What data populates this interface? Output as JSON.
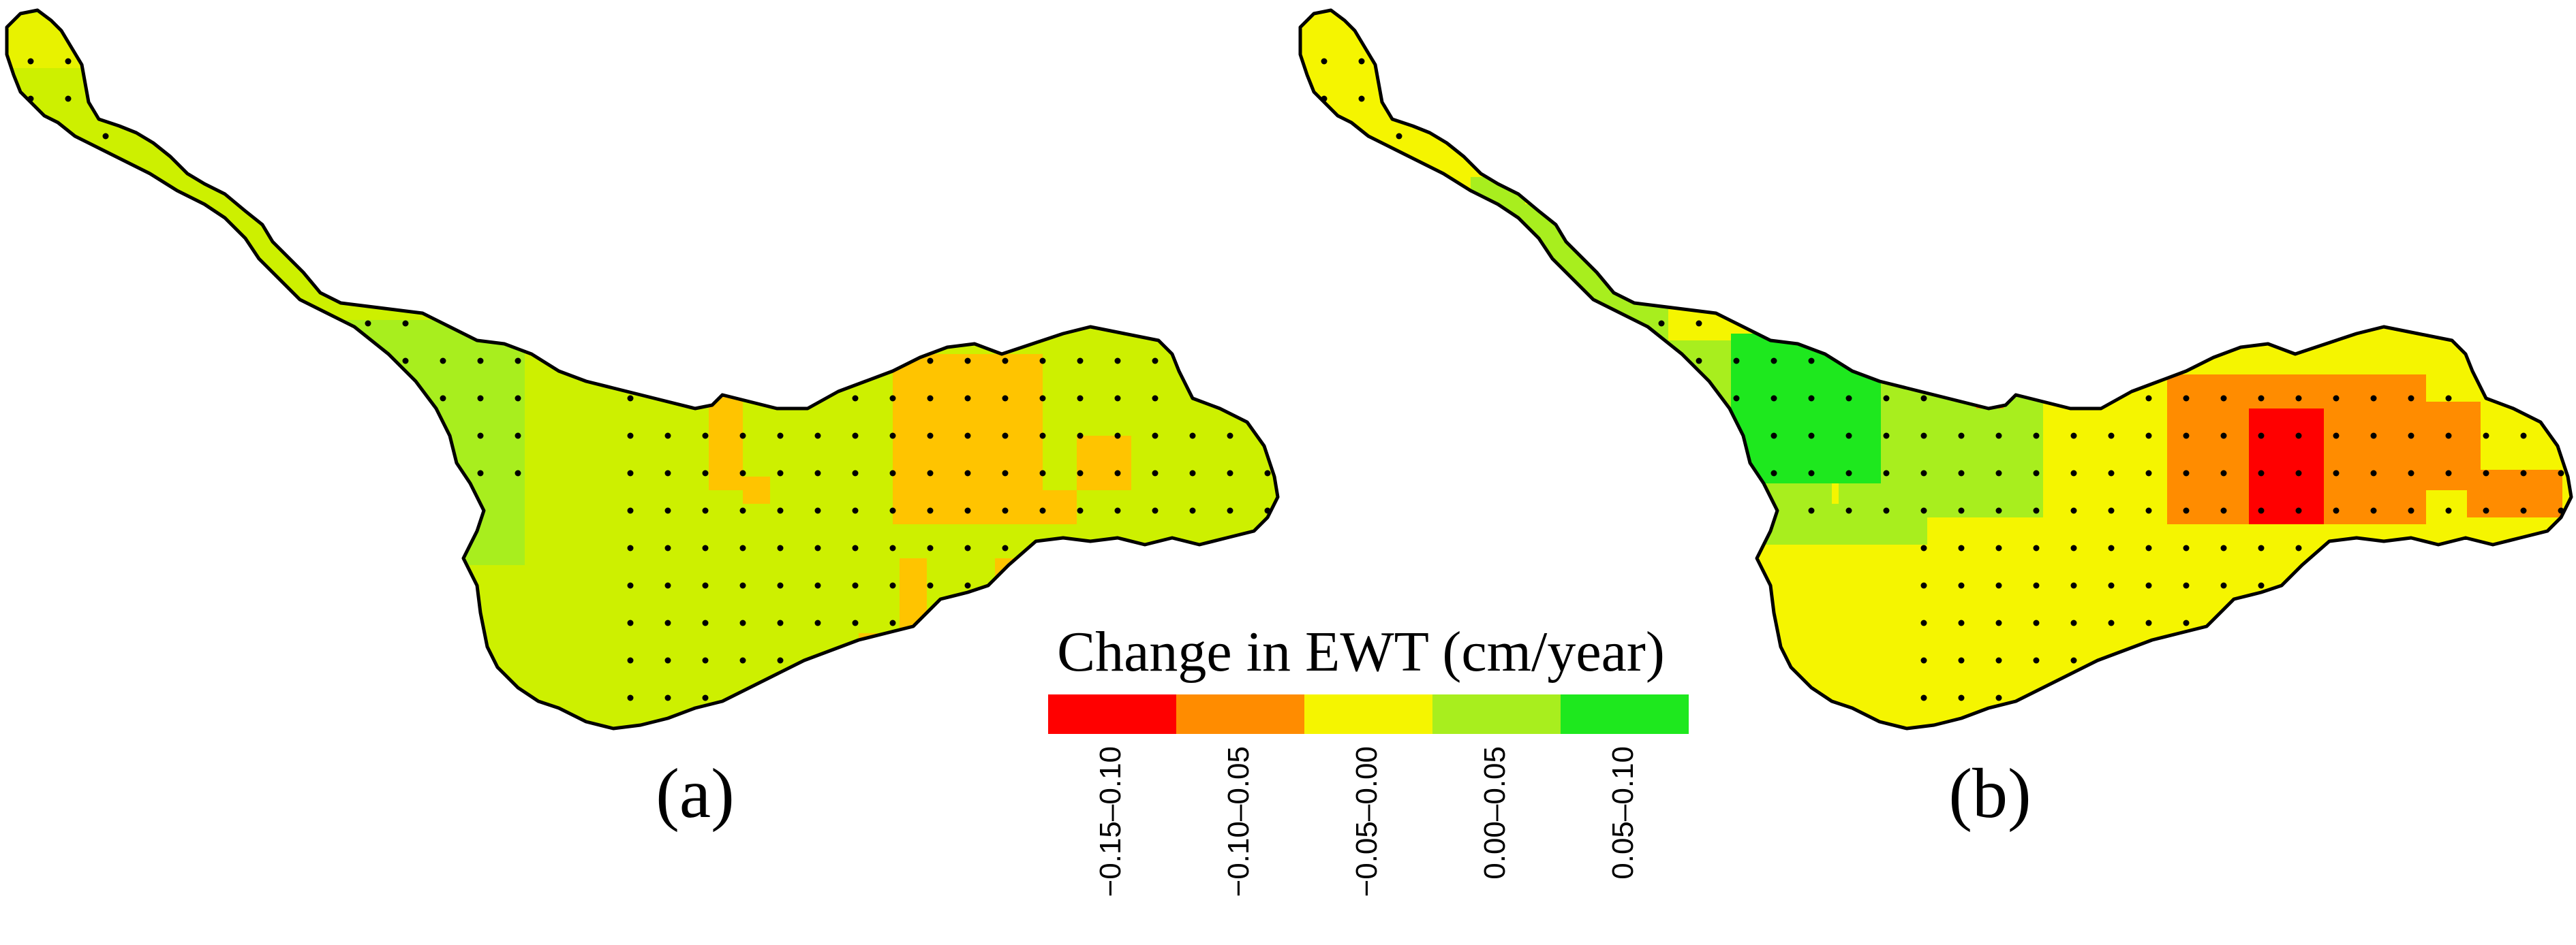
{
  "figure": {
    "panels": [
      {
        "id": "a",
        "label": "(a)"
      },
      {
        "id": "b",
        "label": "(b)"
      }
    ]
  },
  "legend": {
    "title": "Change in EWT (cm/year)",
    "classes": [
      {
        "label": "−0.15–0.10",
        "color": "#ff0000"
      },
      {
        "label": "−0.10–0.05",
        "color": "#ff8c00"
      },
      {
        "label": "−0.05–0.00",
        "color": "#f5f500"
      },
      {
        "label": "0.00–0.05",
        "color": "#a8ee1e"
      },
      {
        "label": "0.05–0.10",
        "color": "#1ee81e"
      }
    ]
  },
  "map_colors": {
    "outline": "#000000",
    "dot": "#000000",
    "panel_a_base": "#cdf000",
    "panel_b_base": "#f5f500"
  }
}
